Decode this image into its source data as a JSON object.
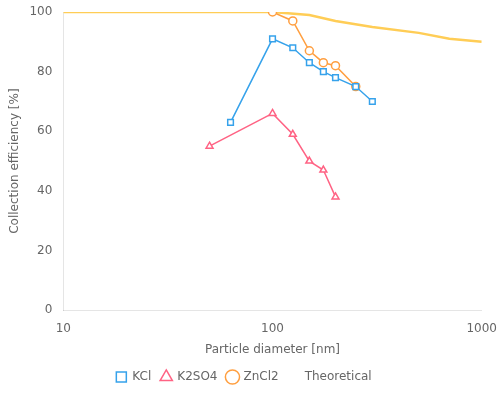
{
  "chart_data": {
    "type": "line",
    "xlabel": "Particle diameter [nm]",
    "ylabel": "Collection efficiency [%]",
    "log": "x",
    "xlim": [
      10,
      1000
    ],
    "ylim": [
      0,
      100
    ],
    "xticks": [
      10,
      100,
      1000
    ],
    "yticks": [
      0,
      20,
      40,
      60,
      80,
      100
    ],
    "grid": false,
    "legend": "bottom",
    "series": [
      {
        "name": "KCl",
        "marker": "square",
        "x": [
          63,
          100,
          125,
          150,
          175,
          200,
          250,
          300
        ],
        "values": [
          63,
          91,
          88,
          83,
          80,
          78,
          75,
          70
        ]
      },
      {
        "name": "K2SO4",
        "marker": "triangle",
        "x": [
          50,
          100,
          125,
          150,
          175,
          200,
          250,
          300
        ],
        "values": [
          55,
          66,
          59,
          50,
          47,
          38,
          null,
          null
        ]
      },
      {
        "name": "ZnCl2",
        "marker": "circle",
        "x": [
          100,
          125,
          150,
          175,
          200,
          250,
          300
        ],
        "values": [
          100,
          97,
          87,
          83,
          82,
          75,
          null
        ]
      },
      {
        "name": "Theoretical",
        "marker": "none",
        "x": [
          10,
          20,
          30,
          50,
          70,
          100,
          150,
          200,
          300,
          500,
          700,
          1000
        ],
        "values": [
          100,
          100,
          100,
          100,
          100,
          100,
          99,
          97,
          95,
          93,
          91,
          90
        ]
      }
    ]
  }
}
